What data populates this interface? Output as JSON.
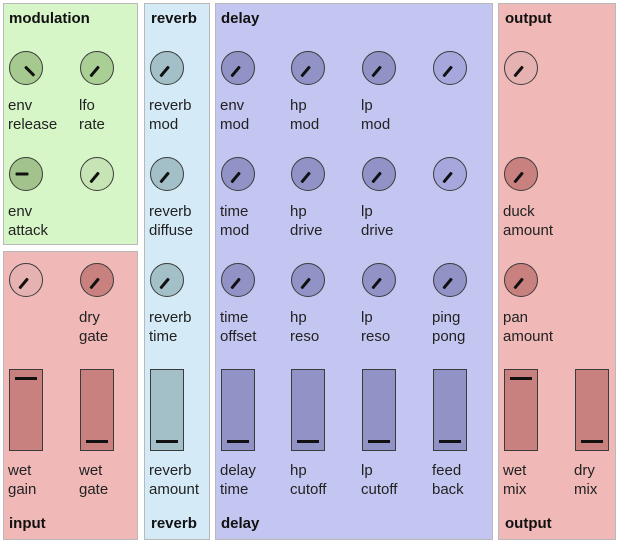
{
  "sections": {
    "modulation": {
      "title": "modulation"
    },
    "reverb": {
      "title_top": "reverb",
      "title_bottom": "reverb"
    },
    "delay": {
      "title_top": "delay",
      "title_bottom": "delay"
    },
    "input": {
      "title": "input"
    },
    "output": {
      "title_top": "output",
      "title_bottom": "output"
    }
  },
  "colors": {
    "modulation_bg": "#d7f6c8",
    "reverb_bg": "#d4ebf7",
    "delay_bg": "#c4c6f2",
    "input_bg": "#f1b8b8",
    "output_bg": "#f1b8b8"
  },
  "knobs": [
    {
      "id": "env-release",
      "line1": "env",
      "line2": "release",
      "rotation": -45,
      "color": "#a6c98f"
    },
    {
      "id": "lfo-rate",
      "line1": "lfo",
      "line2": "rate",
      "rotation": 40,
      "color": "#a9cf95"
    },
    {
      "id": "env-attack",
      "line1": "env",
      "line2": "attack",
      "rotation": 90,
      "color": "#a2c48c"
    },
    {
      "id": "lfo-amount",
      "line1": "",
      "line2": "",
      "rotation": 40,
      "color": "#c6e4b4"
    },
    {
      "id": "wet-input",
      "line1": "",
      "line2": "",
      "rotation": 40,
      "color": "#e6b2b1"
    },
    {
      "id": "dry-gate",
      "line1": "dry",
      "line2": "gate",
      "rotation": 40,
      "color": "#c98180"
    },
    {
      "id": "reverb-mod",
      "line1": "reverb",
      "line2": "mod",
      "rotation": 40,
      "color": "#a3bfc8"
    },
    {
      "id": "reverb-diffuse",
      "line1": "reverb",
      "line2": "diffuse",
      "rotation": 40,
      "color": "#a3bfc8"
    },
    {
      "id": "reverb-time",
      "line1": "reverb",
      "line2": "time",
      "rotation": 40,
      "color": "#a3bfc8"
    },
    {
      "id": "env-mod",
      "line1": "env",
      "line2": "mod",
      "rotation": 40,
      "color": "#9193c6"
    },
    {
      "id": "hp-mod",
      "line1": "hp",
      "line2": "mod",
      "rotation": 40,
      "color": "#9193c6"
    },
    {
      "id": "lp-mod",
      "line1": "lp",
      "line2": "mod",
      "rotation": 40,
      "color": "#9193c6"
    },
    {
      "id": "delay-knob-4",
      "line1": "",
      "line2": "",
      "rotation": 40,
      "color": "#a6a8dd"
    },
    {
      "id": "time-mod",
      "line1": "time",
      "line2": "mod",
      "rotation": 40,
      "color": "#9193c6"
    },
    {
      "id": "hp-drive",
      "line1": "hp",
      "line2": "drive",
      "rotation": 40,
      "color": "#9193c6"
    },
    {
      "id": "lp-drive",
      "line1": "lp",
      "line2": "drive",
      "rotation": 40,
      "color": "#9193c6"
    },
    {
      "id": "delay-knob-8",
      "line1": "",
      "line2": "",
      "rotation": 40,
      "color": "#a6a8dd"
    },
    {
      "id": "time-offset",
      "line1": "time",
      "line2": "offset",
      "rotation": 40,
      "color": "#9193c6"
    },
    {
      "id": "hp-reso",
      "line1": "hp",
      "line2": "reso",
      "rotation": 40,
      "color": "#9193c6"
    },
    {
      "id": "lp-reso",
      "line1": "lp",
      "line2": "reso",
      "rotation": 40,
      "color": "#9193c6"
    },
    {
      "id": "ping-pong",
      "line1": "ping",
      "line2": "pong",
      "rotation": 40,
      "color": "#9193c6"
    },
    {
      "id": "output-knob-1",
      "line1": "",
      "line2": "",
      "rotation": 40,
      "color": "#e6b2b1"
    },
    {
      "id": "duck-amount",
      "line1": "duck",
      "line2": "amount",
      "rotation": 40,
      "color": "#c98180"
    },
    {
      "id": "pan-amount",
      "line1": "pan",
      "line2": "amount",
      "rotation": 40,
      "color": "#c98180"
    }
  ],
  "faders": [
    {
      "id": "wet-gain",
      "line1": "wet",
      "line2": "gain",
      "level": 0.95,
      "color": "#c98180"
    },
    {
      "id": "wet-gate",
      "line1": "wet",
      "line2": "gate",
      "level": 0.05,
      "color": "#c98180"
    },
    {
      "id": "reverb-amount",
      "line1": "reverb",
      "line2": "amount",
      "level": 0.05,
      "color": "#a3bfc8"
    },
    {
      "id": "delay-time",
      "line1": "delay",
      "line2": "time",
      "level": 0.05,
      "color": "#9193c6"
    },
    {
      "id": "hp-cutoff",
      "line1": "hp",
      "line2": "cutoff",
      "level": 0.05,
      "color": "#9193c6"
    },
    {
      "id": "lp-cutoff",
      "line1": "lp",
      "line2": "cutoff",
      "level": 0.05,
      "color": "#9193c6"
    },
    {
      "id": "feed-back",
      "line1": "feed",
      "line2": "back",
      "level": 0.05,
      "color": "#9193c6"
    },
    {
      "id": "wet-mix",
      "line1": "wet",
      "line2": "mix",
      "level": 0.95,
      "color": "#c98180"
    },
    {
      "id": "dry-mix",
      "line1": "dry",
      "line2": "mix",
      "level": 0.05,
      "color": "#c98180"
    }
  ]
}
